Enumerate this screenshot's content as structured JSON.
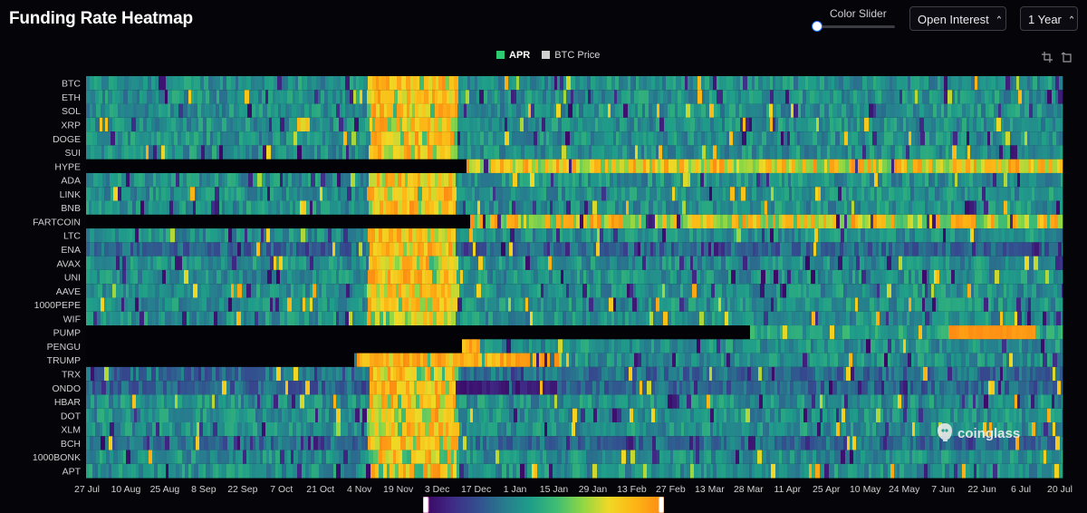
{
  "title": "Funding Rate Heatmap",
  "controls": {
    "color_slider_label": "Color Slider",
    "color_slider_value": 0,
    "metric_select": "Open Interest",
    "range_select": "1 Year"
  },
  "legend": {
    "items": [
      {
        "label": "APR",
        "color": "#2ecc71"
      },
      {
        "label": "BTC Price",
        "color": "#d0d0d0"
      }
    ]
  },
  "watermark": "coinglass",
  "colorscale": [
    "#3b0764",
    "#3f2b86",
    "#334f8f",
    "#277b8e",
    "#1f9e89",
    "#3fbc73",
    "#8fd744",
    "#f1d825",
    "#fdb515",
    "#fd8c14"
  ],
  "chart_data": {
    "type": "heatmap",
    "title": "Funding Rate Heatmap",
    "series_label": "APR",
    "rows": [
      "BTC",
      "ETH",
      "SOL",
      "XRP",
      "DOGE",
      "SUI",
      "HYPE",
      "ADA",
      "LINK",
      "BNB",
      "FARTCOIN",
      "LTC",
      "ENA",
      "AVAX",
      "UNI",
      "AAVE",
      "1000PEPE",
      "WIF",
      "PUMP",
      "PENGU",
      "TRUMP",
      "TRX",
      "ONDO",
      "HBAR",
      "DOT",
      "XLM",
      "BCH",
      "1000BONK",
      "APT"
    ],
    "x_tick_labels": [
      "27 Jul",
      "10 Aug",
      "25 Aug",
      "8 Sep",
      "22 Sep",
      "7 Oct",
      "21 Oct",
      "4 Nov",
      "19 Nov",
      "3 Dec",
      "17 Dec",
      "1 Jan",
      "15 Jan",
      "29 Jan",
      "13 Feb",
      "27 Feb",
      "13 Mar",
      "28 Mar",
      "11 Apr",
      "25 Apr",
      "10 May",
      "24 May",
      "7 Jun",
      "22 Jun",
      "6 Jul",
      "20 Jul"
    ],
    "x_range": [
      "27 Jul",
      "22 Jul"
    ],
    "data_start_index": {
      "HYPE": 0.39,
      "FARTCOIN": 0.393,
      "PUMP": 0.68,
      "PENGU": 0.385,
      "TRUMP": 0.275
    },
    "typical_level_by_period": [
      {
        "period": "27 Jul - 4 Nov",
        "level": 0.42
      },
      {
        "period": "4 Nov - 17 Dec",
        "level": 0.82
      },
      {
        "period": "17 Dec - 20 Jul",
        "level": 0.4
      }
    ],
    "row_level_bias": {
      "HYPE": 0.3,
      "FARTCOIN": 0.25,
      "PUMP": 0.05,
      "ENA": -0.12,
      "TRX": -0.1,
      "ONDO": -0.12,
      "BCH": -0.1
    },
    "color_range": [
      "low",
      "high"
    ],
    "grid": false
  }
}
